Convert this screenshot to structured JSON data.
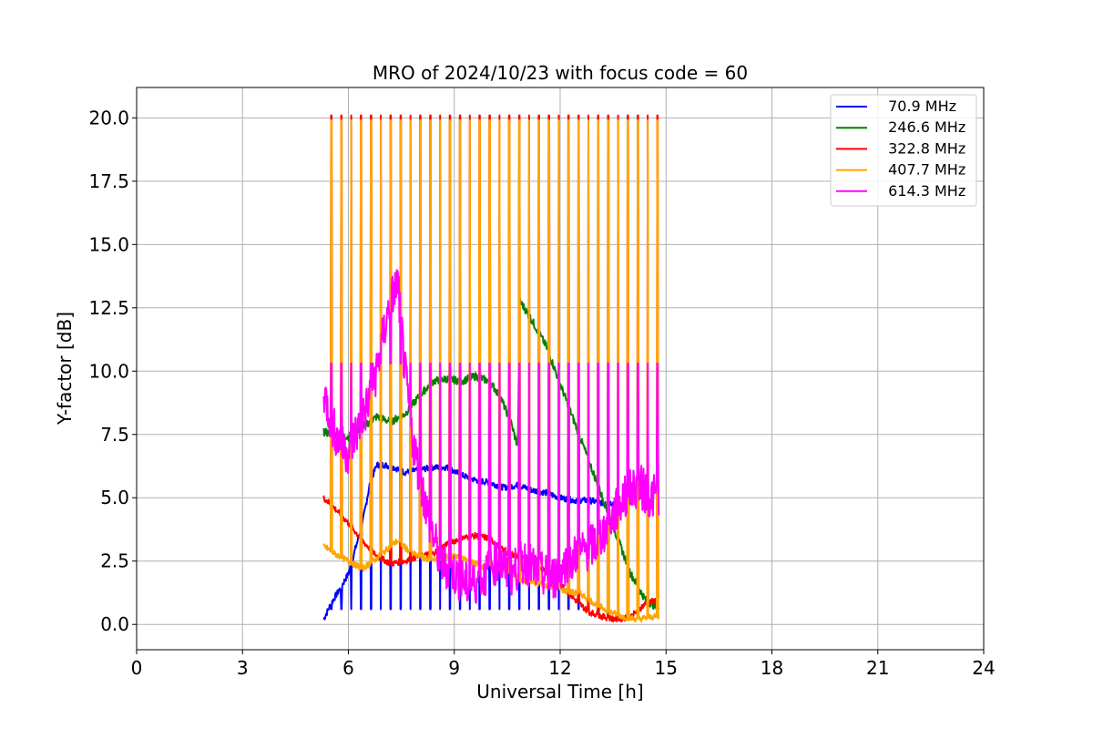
{
  "chart_data": {
    "type": "line",
    "title": "MRO of 2024/10/23 with focus code = 60",
    "xlabel": "Universal Time [h]",
    "ylabel": "Y-factor [dB]",
    "xlim": [
      0,
      24
    ],
    "ylim": [
      -1.0,
      21.2
    ],
    "xticks": [
      0,
      3,
      6,
      9,
      12,
      15,
      18,
      21,
      24
    ],
    "xtick_labels": [
      "0",
      "3",
      "6",
      "9",
      "12",
      "15",
      "18",
      "21",
      "24"
    ],
    "yticks": [
      0.0,
      2.5,
      5.0,
      7.5,
      10.0,
      12.5,
      15.0,
      17.5,
      20.0
    ],
    "ytick_labels": [
      "0.0",
      "2.5",
      "5.0",
      "7.5",
      "10.0",
      "12.5",
      "15.0",
      "17.5",
      "20.0"
    ],
    "grid": true,
    "legend_position": "top-right",
    "series": [
      {
        "name": " 70.9 MHz",
        "color": "#0000ff",
        "x": [
          5.3,
          5.5,
          5.8,
          6.0,
          6.2,
          6.4,
          6.6,
          6.8,
          7.0,
          7.3,
          7.6,
          8.0,
          8.4,
          8.8,
          9.2,
          9.6,
          10.0,
          10.4,
          10.8,
          11.2,
          11.6,
          12.0,
          12.4,
          12.8,
          13.2,
          13.6,
          14.0
        ],
        "y": [
          0.2,
          0.8,
          1.5,
          2.0,
          3.0,
          4.0,
          5.5,
          6.3,
          6.3,
          6.2,
          6.0,
          6.1,
          6.2,
          6.2,
          5.9,
          5.7,
          5.6,
          5.4,
          5.5,
          5.3,
          5.2,
          5.0,
          4.9,
          4.9,
          4.8,
          4.8,
          4.7
        ]
      },
      {
        "name": " 246.6 MHz",
        "color": "#008000",
        "x": [
          5.3,
          5.6,
          6.0,
          6.4,
          6.8,
          7.2,
          7.6,
          8.0,
          8.4,
          8.8,
          9.2,
          9.6,
          10.0,
          10.3,
          10.6,
          10.8,
          10.85,
          11.2,
          11.6,
          12.0,
          12.4,
          12.8,
          13.2,
          13.6,
          14.0,
          14.4,
          14.8
        ],
        "y": [
          7.6,
          7.5,
          7.4,
          7.8,
          8.2,
          8.0,
          8.3,
          9.0,
          9.6,
          9.7,
          9.6,
          9.8,
          9.6,
          9.0,
          8.0,
          7.0,
          12.8,
          12.0,
          11.0,
          9.5,
          8.0,
          6.5,
          5.0,
          3.5,
          2.0,
          1.0,
          0.6
        ]
      },
      {
        "name": " 322.8 MHz",
        "color": "#ff0000",
        "x": [
          5.3,
          5.6,
          6.0,
          6.4,
          6.8,
          7.2,
          7.6,
          8.0,
          8.4,
          8.8,
          9.2,
          9.6,
          10.0,
          10.4,
          10.8,
          11.2,
          11.6,
          12.0,
          12.4,
          12.8,
          13.2,
          13.6,
          14.0,
          14.4,
          14.8
        ],
        "y": [
          5.0,
          4.6,
          4.0,
          3.3,
          2.7,
          2.4,
          2.5,
          2.7,
          2.8,
          3.2,
          3.4,
          3.5,
          3.4,
          2.9,
          2.7,
          2.5,
          2.1,
          1.6,
          1.0,
          0.5,
          0.3,
          0.2,
          0.3,
          0.8,
          1.0
        ]
      },
      {
        "name": " 407.7 MHz",
        "color": "#ffa500",
        "x": [
          5.3,
          5.6,
          6.0,
          6.4,
          6.8,
          7.2,
          7.4,
          7.8,
          8.2,
          8.6,
          9.0,
          9.4,
          9.8,
          10.2,
          10.6,
          11.0,
          11.4,
          11.8,
          12.2,
          12.6,
          13.0,
          13.4,
          13.8,
          14.2,
          14.6,
          14.8
        ],
        "y": [
          3.1,
          2.8,
          2.5,
          2.2,
          2.6,
          3.1,
          3.3,
          2.8,
          2.6,
          2.6,
          2.7,
          2.5,
          2.3,
          2.2,
          2.0,
          1.7,
          1.6,
          1.5,
          1.3,
          1.2,
          0.8,
          0.5,
          0.3,
          0.2,
          0.3,
          0.3
        ]
      },
      {
        "name": " 614.3 MHz",
        "color": "#ff00ff",
        "x": [
          5.3,
          5.5,
          5.8,
          6.0,
          6.2,
          6.5,
          6.8,
          7.0,
          7.2,
          7.4,
          7.6,
          7.8,
          8.0,
          8.3,
          8.6,
          9.0,
          9.4,
          9.8,
          10.2,
          10.6,
          11.0,
          11.4,
          11.8,
          12.2,
          12.6,
          13.0,
          13.4,
          13.8,
          14.2,
          14.6,
          14.8
        ],
        "y": [
          9.3,
          8.0,
          7.0,
          6.8,
          7.5,
          8.5,
          10.0,
          11.5,
          12.8,
          13.5,
          10.0,
          7.5,
          6.0,
          4.0,
          2.5,
          2.0,
          1.5,
          1.8,
          2.5,
          2.0,
          2.5,
          2.0,
          1.8,
          2.5,
          2.8,
          3.2,
          4.0,
          5.0,
          5.5,
          5.0,
          5.2
        ]
      }
    ],
    "calibration_pulses": {
      "times": [
        5.52,
        5.8,
        6.08,
        6.36,
        6.64,
        6.92,
        7.2,
        7.48,
        7.76,
        8.04,
        8.32,
        8.6,
        8.88,
        9.16,
        9.44,
        9.72,
        10.0,
        10.28,
        10.56,
        10.84,
        11.12,
        11.4,
        11.68,
        11.96,
        12.24,
        12.52,
        12.8,
        13.08,
        13.36,
        13.64,
        13.92,
        14.2,
        14.48,
        14.76
      ],
      "red_peak": 20.1,
      "orange_peak": 19.9,
      "magenta_peak": 10.3,
      "blue_peak": 0.6
    }
  }
}
